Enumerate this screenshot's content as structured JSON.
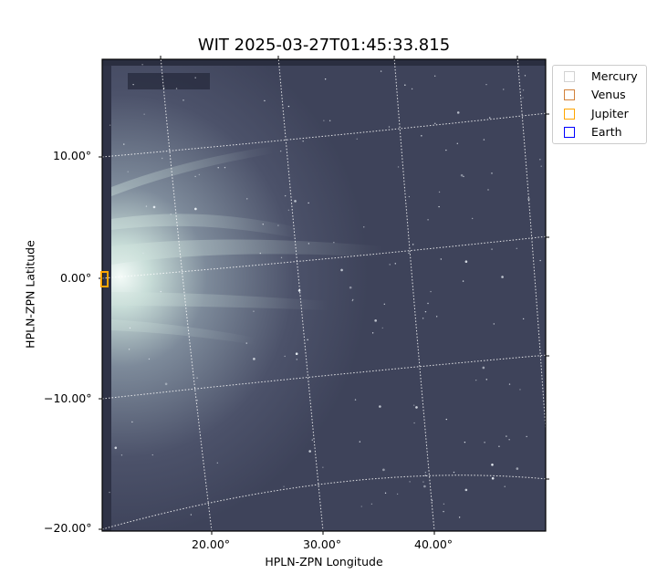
{
  "chart_data": {
    "type": "image",
    "title": "WIT 2025-03-27T01:45:33.815",
    "xlabel": "HPLN-ZPN Longitude",
    "ylabel": "HPLN-ZPN Latitude",
    "x_ticks": [
      "20.00°",
      "30.00°",
      "40.00°"
    ],
    "y_ticks": [
      "10.00°",
      "0.00°",
      "−10.00°",
      "−20.00°"
    ],
    "grid": true,
    "colormap": "gray-blue",
    "legend_position": "upper-right-outside",
    "legend": [
      {
        "name": "Mercury",
        "color": "#d3d3d3"
      },
      {
        "name": "Venus",
        "color": "#d2813a"
      },
      {
        "name": "Jupiter",
        "color": "#ffa500"
      },
      {
        "name": "Earth",
        "color": "#0000ff"
      }
    ],
    "markers": [
      {
        "body": "Jupiter",
        "lon_deg": 10.5,
        "lat_deg": 0.0
      }
    ]
  }
}
